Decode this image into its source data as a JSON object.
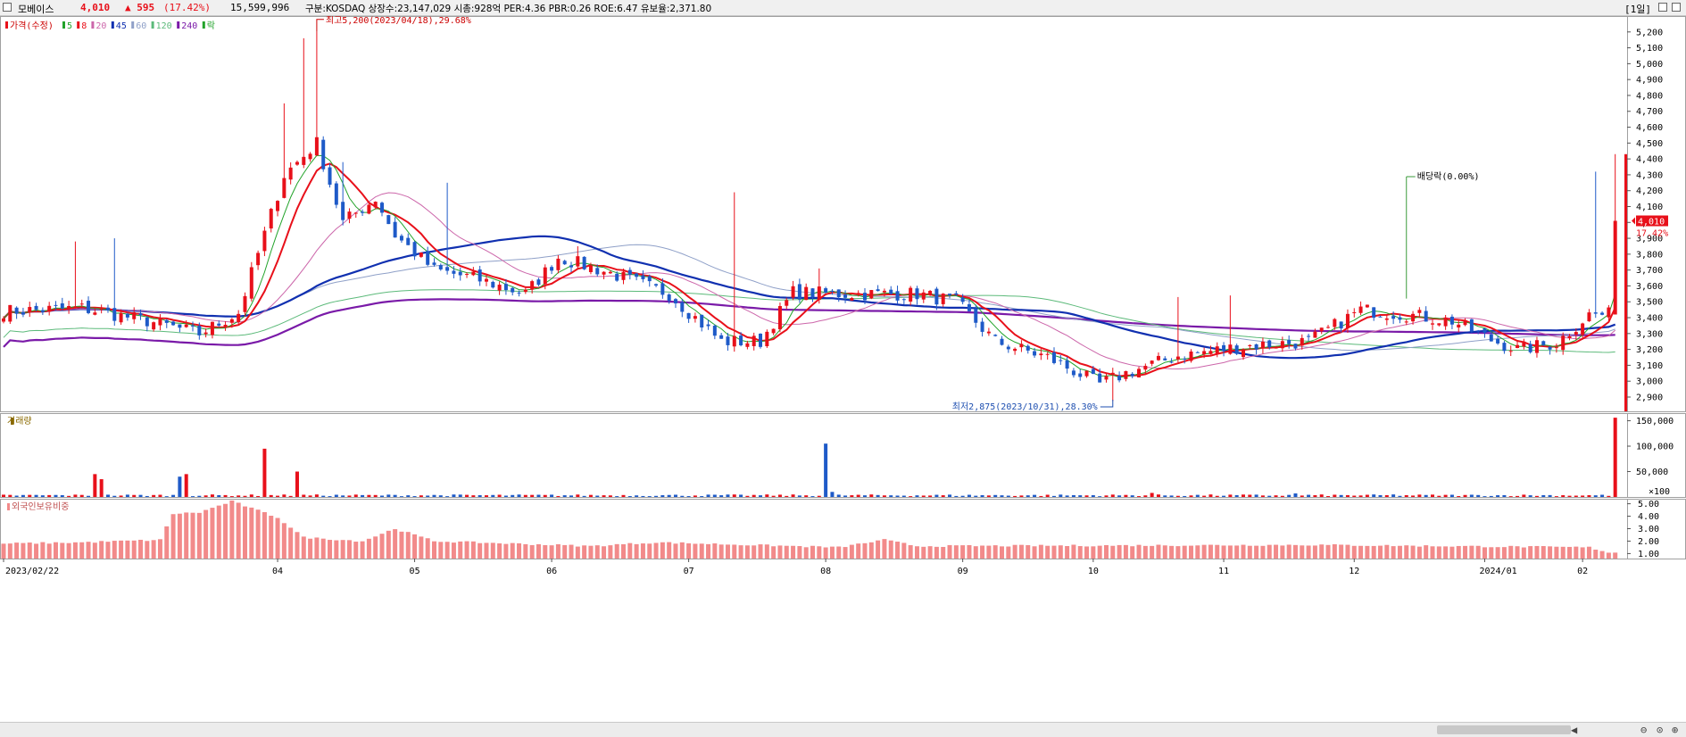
{
  "header": {
    "name": "모베이스",
    "price": "4,010",
    "change": "▲ 595",
    "pct": "(17.42%)",
    "volume": "15,599,996",
    "info": "구분:KOSDAQ 상장수:23,147,029 시총:928억 PER:4.36 PBR:0.26 ROE:6.47 유보율:2,371.80",
    "period": "[1일]"
  },
  "colors": {
    "up": "#e8101a",
    "down": "#1e5ac8",
    "ma5": "#22a32a",
    "ma8": "#e8101a",
    "ma20": "#cc66aa",
    "ma45": "#1030b0",
    "ma60": "#8fa0c8",
    "ma120": "#5cba7a",
    "ma240": "#7a1aa8",
    "foreign": "#f28a8a"
  },
  "chart_data": [
    {
      "type": "candlestick",
      "legend": [
        "가격(수정)",
        "5",
        "8",
        "20",
        "45",
        "60",
        "120",
        "240",
        "락"
      ],
      "ylim": [
        2810,
        5300
      ],
      "y_ticks": [
        "5,200",
        "5,100",
        "5,000",
        "4,900",
        "4,800",
        "4,700",
        "4,600",
        "4,500",
        "4,400",
        "4,300",
        "4,200",
        "4,100",
        "4,000",
        "3,900",
        "3,800",
        "3,700",
        "3,600",
        "3,500",
        "3,400",
        "3,300",
        "3,200",
        "3,100",
        "3,000",
        "2,900"
      ],
      "x_labels": [
        "2023/02/22",
        "04",
        "05",
        "06",
        "07",
        "08",
        "09",
        "10",
        "11",
        "12",
        "2024/01",
        "02"
      ],
      "annotations": {
        "high": "최고5,200(2023/04/18),29.68%",
        "low": "최저2,875(2023/10/31),28.30%",
        "dividend": "배당락(0.00%)"
      },
      "last_price_label": "4,010",
      "last_pct_label": "17.42%",
      "close_keypoints": [
        [
          0,
          3440
        ],
        [
          12,
          3460
        ],
        [
          22,
          3380
        ],
        [
          30,
          3300
        ],
        [
          36,
          3430
        ],
        [
          43,
          4300
        ],
        [
          48,
          4500
        ],
        [
          52,
          4000
        ],
        [
          57,
          4150
        ],
        [
          60,
          3920
        ],
        [
          66,
          3700
        ],
        [
          72,
          3650
        ],
        [
          80,
          3550
        ],
        [
          85,
          3780
        ],
        [
          93,
          3680
        ],
        [
          102,
          3550
        ],
        [
          110,
          3250
        ],
        [
          116,
          3250
        ],
        [
          121,
          3560
        ],
        [
          128,
          3550
        ],
        [
          140,
          3550
        ],
        [
          146,
          3500
        ],
        [
          152,
          3250
        ],
        [
          160,
          3150
        ],
        [
          168,
          2980
        ],
        [
          172,
          3050
        ],
        [
          180,
          3160
        ],
        [
          190,
          3220
        ],
        [
          200,
          3250
        ],
        [
          208,
          3450
        ],
        [
          215,
          3420
        ],
        [
          222,
          3380
        ],
        [
          228,
          3260
        ],
        [
          232,
          3200
        ],
        [
          238,
          3240
        ],
        [
          243,
          3420
        ]
      ],
      "spikes": [
        [
          11,
          3880
        ],
        [
          17,
          3900
        ],
        [
          43,
          4750
        ],
        [
          46,
          5160
        ],
        [
          48,
          5200
        ],
        [
          52,
          4380
        ],
        [
          68,
          4250
        ],
        [
          88,
          3850
        ],
        [
          112,
          4190
        ],
        [
          125,
          3710
        ],
        [
          164,
          3050
        ],
        [
          170,
          2875
        ],
        [
          180,
          3530
        ],
        [
          188,
          3540
        ],
        [
          224,
          3370
        ],
        [
          244,
          4320
        ]
      ]
    },
    {
      "type": "bar",
      "legend": [
        "거래량"
      ],
      "y_ticks": [
        "150,000",
        "100,000",
        "50,000",
        "×100"
      ],
      "last_value": 155999,
      "events": [
        [
          14,
          45000
        ],
        [
          15,
          35000
        ],
        [
          27,
          40000
        ],
        [
          28,
          45000
        ],
        [
          40,
          95000
        ],
        [
          45,
          50000
        ],
        [
          126,
          105000
        ],
        [
          127,
          10000
        ],
        [
          176,
          8000
        ],
        [
          198,
          7000
        ],
        [
          213,
          5000
        ]
      ]
    },
    {
      "type": "bar",
      "legend": [
        "외국인보유비중"
      ],
      "y_ticks": [
        "5.00",
        "4.00",
        "3.00",
        "2.00",
        "1.00"
      ],
      "keypoints": [
        [
          0,
          1.8
        ],
        [
          12,
          1.9
        ],
        [
          24,
          2.1
        ],
        [
          26,
          4.2
        ],
        [
          30,
          4.3
        ],
        [
          35,
          5.2
        ],
        [
          42,
          3.9
        ],
        [
          46,
          2.3
        ],
        [
          55,
          2.0
        ],
        [
          60,
          3.0
        ],
        [
          66,
          2.0
        ],
        [
          90,
          1.6
        ],
        [
          100,
          1.9
        ],
        [
          128,
          1.5
        ],
        [
          135,
          2.1
        ],
        [
          140,
          1.6
        ],
        [
          200,
          1.7
        ],
        [
          243,
          1.5
        ],
        [
          246,
          1.1
        ]
      ]
    }
  ]
}
